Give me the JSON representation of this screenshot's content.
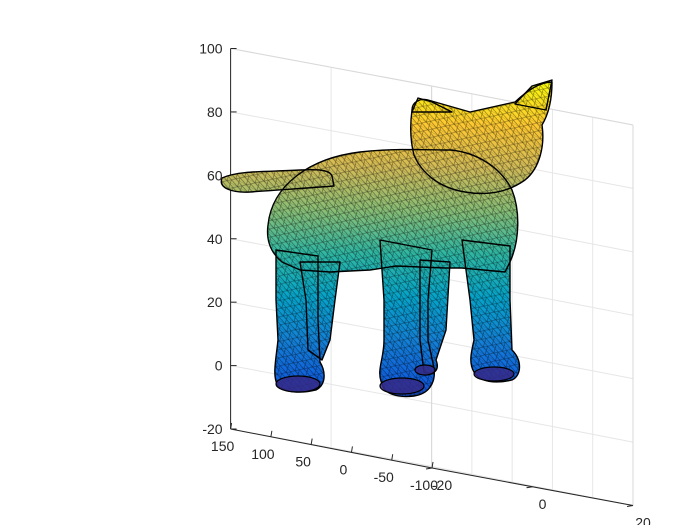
{
  "chart_data": {
    "type": "trisurf",
    "title": "",
    "xlabel": "",
    "ylabel": "",
    "zlabel": "",
    "grid": true,
    "box": "back-planes",
    "colormap": "parula",
    "colormap_stops": [
      "#352a87",
      "#0f5cdd",
      "#1481d6",
      "#06a4ca",
      "#2eb7a4",
      "#87bf77",
      "#d1bb59",
      "#fec832",
      "#f9fb0e"
    ],
    "edge_color": "#000000",
    "x_axis": {
      "range": [
        -100,
        150
      ],
      "ticks": [
        150,
        100,
        50,
        0,
        -50,
        -100
      ]
    },
    "y_axis": {
      "range": [
        -20,
        20
      ],
      "ticks": [
        -20,
        0,
        20
      ]
    },
    "z_axis": {
      "range": [
        -20,
        100
      ],
      "ticks": [
        -20,
        0,
        20,
        40,
        60,
        80,
        100
      ]
    },
    "x_tick_labels": [
      "150",
      "100",
      "50",
      "0",
      "-50",
      "-100"
    ],
    "y_tick_labels": [
      "-20",
      "0",
      "20"
    ],
    "z_tick_labels": [
      "-20",
      "0",
      "20",
      "40",
      "60",
      "80",
      "100"
    ],
    "surface": {
      "name": "cat",
      "z_min": -3,
      "z_max": 96,
      "parts": [
        "tail",
        "body",
        "head",
        "ear-left",
        "ear-right",
        "leg-back-left",
        "leg-back-right",
        "leg-front-left",
        "leg-front-right"
      ]
    }
  }
}
